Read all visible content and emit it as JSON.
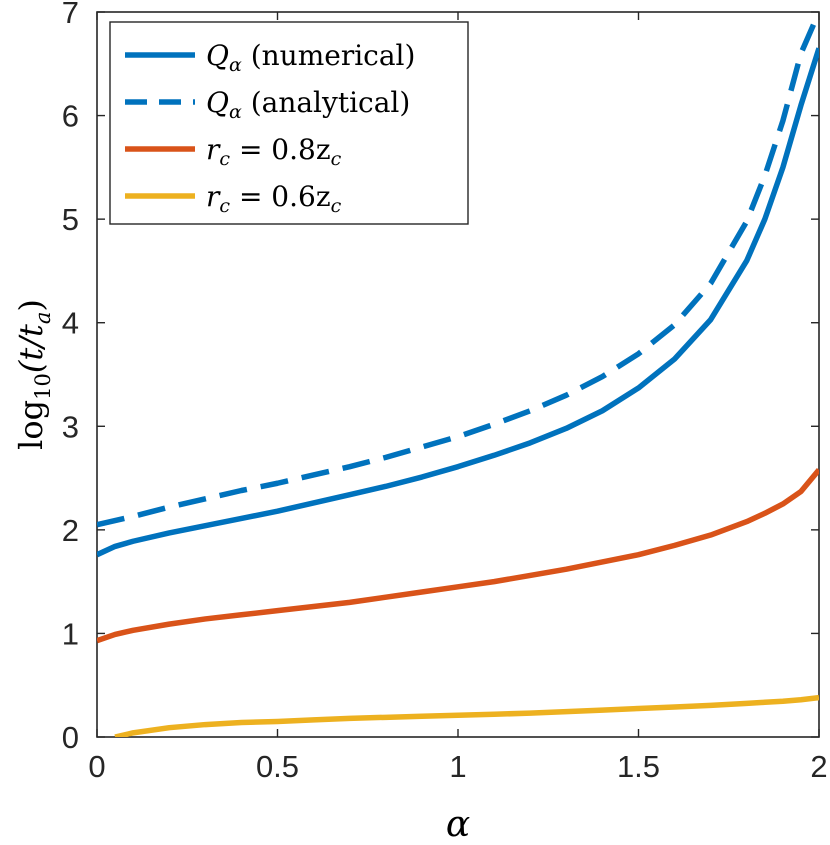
{
  "chart_data": {
    "type": "line",
    "xlabel": "α",
    "ylabel_parts": {
      "base": "log",
      "sub": "10",
      "arg": "(t/t",
      "argsub": "a",
      "close": ")"
    },
    "xlim": [
      0,
      2
    ],
    "ylim": [
      0,
      7
    ],
    "xticks": [
      0,
      0.5,
      1,
      1.5,
      2
    ],
    "xtick_labels": [
      "0",
      "0.5",
      "1",
      "1.5",
      "2"
    ],
    "yticks": [
      0,
      1,
      2,
      3,
      4,
      5,
      6,
      7
    ],
    "ytick_labels": [
      "0",
      "1",
      "2",
      "3",
      "4",
      "5",
      "6",
      "7"
    ],
    "legend_position": "top-left",
    "x": [
      0,
      0.05,
      0.1,
      0.2,
      0.3,
      0.4,
      0.5,
      0.6,
      0.7,
      0.8,
      0.9,
      1.0,
      1.1,
      1.2,
      1.3,
      1.4,
      1.5,
      1.6,
      1.7,
      1.8,
      1.85,
      1.9,
      1.95,
      2.0
    ],
    "series": [
      {
        "name_main": "Q",
        "name_sub": "α",
        "name_rest": " (numerical)",
        "color": "#0072BD",
        "dash": "solid",
        "values": [
          1.76,
          1.84,
          1.89,
          1.97,
          2.04,
          2.11,
          2.18,
          2.26,
          2.34,
          2.42,
          2.51,
          2.61,
          2.72,
          2.84,
          2.98,
          3.15,
          3.37,
          3.65,
          4.03,
          4.6,
          5.0,
          5.5,
          6.1,
          6.65
        ]
      },
      {
        "name_main": "Q",
        "name_sub": "α",
        "name_rest": " (analytical)",
        "color": "#0072BD",
        "dash": "dashed",
        "values": [
          2.05,
          2.09,
          2.13,
          2.22,
          2.3,
          2.38,
          2.45,
          2.53,
          2.61,
          2.7,
          2.8,
          2.9,
          3.02,
          3.15,
          3.3,
          3.48,
          3.7,
          3.98,
          4.38,
          4.98,
          5.42,
          5.95,
          6.6,
          7.0
        ]
      },
      {
        "name_main": "r",
        "name_sub": "c",
        "name_rest": " = 0.8z",
        "name_sub2": "c",
        "color": "#D95319",
        "dash": "solid",
        "values": [
          0.93,
          0.99,
          1.03,
          1.09,
          1.14,
          1.18,
          1.22,
          1.26,
          1.3,
          1.35,
          1.4,
          1.45,
          1.5,
          1.56,
          1.62,
          1.69,
          1.76,
          1.85,
          1.95,
          2.08,
          2.16,
          2.25,
          2.37,
          2.58
        ]
      },
      {
        "name_main": "r",
        "name_sub": "c",
        "name_rest": " = 0.6z",
        "name_sub2": "c",
        "color": "#EDB120",
        "dash": "solid",
        "values": [
          null,
          0.0,
          0.04,
          0.09,
          0.12,
          0.14,
          0.15,
          0.165,
          0.18,
          0.19,
          0.2,
          0.21,
          0.22,
          0.23,
          0.245,
          0.26,
          0.275,
          0.29,
          0.305,
          0.325,
          0.335,
          0.345,
          0.36,
          0.38
        ]
      }
    ]
  }
}
